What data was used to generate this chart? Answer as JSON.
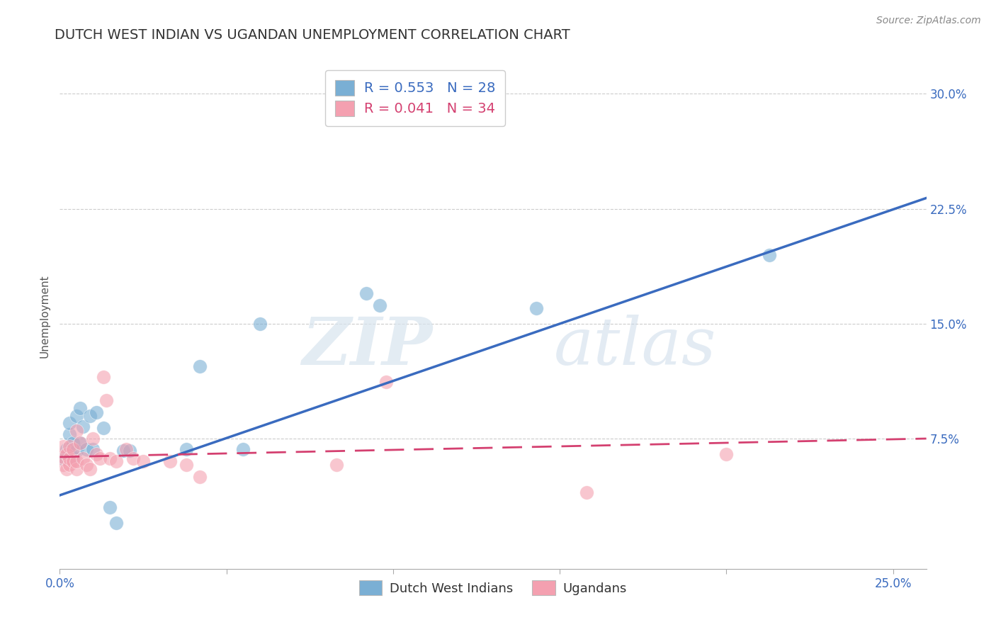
{
  "title": "DUTCH WEST INDIAN VS UGANDAN UNEMPLOYMENT CORRELATION CHART",
  "source": "Source: ZipAtlas.com",
  "ylabel": "Unemployment",
  "xlim": [
    0.0,
    0.26
  ],
  "ylim": [
    -0.01,
    0.32
  ],
  "blue_R": "0.553",
  "blue_N": "28",
  "pink_R": "0.041",
  "pink_N": "34",
  "blue_color": "#7aafd4",
  "pink_color": "#f4a0b0",
  "blue_line_color": "#3a6bbf",
  "pink_line_color": "#d44070",
  "legend_label_blue": "Dutch West Indians",
  "legend_label_pink": "Ugandans",
  "blue_points_x": [
    0.001,
    0.002,
    0.003,
    0.003,
    0.004,
    0.004,
    0.005,
    0.005,
    0.006,
    0.006,
    0.007,
    0.008,
    0.009,
    0.01,
    0.011,
    0.013,
    0.015,
    0.017,
    0.019,
    0.021,
    0.038,
    0.042,
    0.055,
    0.06,
    0.092,
    0.096,
    0.143,
    0.213
  ],
  "blue_points_y": [
    0.062,
    0.068,
    0.078,
    0.085,
    0.063,
    0.072,
    0.067,
    0.09,
    0.072,
    0.095,
    0.083,
    0.068,
    0.09,
    0.068,
    0.092,
    0.082,
    0.03,
    0.02,
    0.067,
    0.067,
    0.068,
    0.122,
    0.068,
    0.15,
    0.17,
    0.162,
    0.16,
    0.195
  ],
  "pink_points_x": [
    0.001,
    0.001,
    0.001,
    0.002,
    0.002,
    0.003,
    0.003,
    0.003,
    0.004,
    0.004,
    0.005,
    0.005,
    0.005,
    0.006,
    0.007,
    0.008,
    0.009,
    0.01,
    0.011,
    0.012,
    0.013,
    0.014,
    0.015,
    0.017,
    0.02,
    0.022,
    0.025,
    0.033,
    0.038,
    0.042,
    0.083,
    0.098,
    0.158,
    0.2
  ],
  "pink_points_y": [
    0.058,
    0.063,
    0.07,
    0.055,
    0.065,
    0.058,
    0.062,
    0.07,
    0.06,
    0.068,
    0.055,
    0.06,
    0.08,
    0.072,
    0.062,
    0.058,
    0.055,
    0.075,
    0.065,
    0.062,
    0.115,
    0.1,
    0.062,
    0.06,
    0.068,
    0.062,
    0.06,
    0.06,
    0.058,
    0.05,
    0.058,
    0.112,
    0.04,
    0.065
  ],
  "blue_line_x": [
    0.0,
    0.26
  ],
  "blue_line_y_start": 0.038,
  "blue_line_y_end": 0.232,
  "pink_line_x": [
    0.0,
    0.26
  ],
  "pink_line_y_start": 0.063,
  "pink_line_y_end": 0.075,
  "watermark_zip": "ZIP",
  "watermark_atlas": "atlas",
  "title_fontsize": 14,
  "axis_label_fontsize": 11,
  "tick_fontsize": 12,
  "source_fontsize": 10
}
